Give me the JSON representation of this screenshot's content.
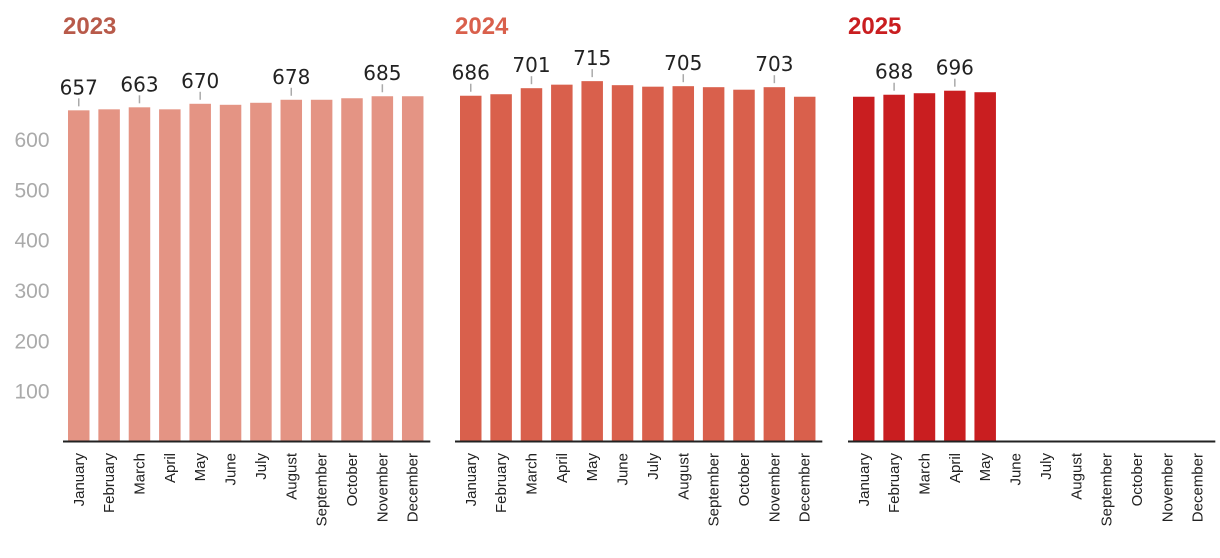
{
  "chart_data": {
    "type": "bar",
    "ylim": [
      0,
      715
    ],
    "y_ticks": [
      100,
      200,
      300,
      400,
      500,
      600
    ],
    "categories": [
      "January",
      "February",
      "March",
      "April",
      "May",
      "June",
      "July",
      "August",
      "September",
      "October",
      "November",
      "December"
    ],
    "panels": [
      {
        "title": "2023",
        "color": "#e49484",
        "title_color": "#b85a4a",
        "values": [
          657,
          659,
          663,
          659,
          670,
          668,
          672,
          678,
          678,
          681,
          685,
          685
        ],
        "labeled": [
          0,
          2,
          4,
          7,
          10
        ]
      },
      {
        "title": "2024",
        "color": "#d9604c",
        "title_color": "#d9604c",
        "values": [
          686,
          689,
          701,
          708,
          715,
          707,
          704,
          705,
          703,
          698,
          703,
          684
        ],
        "labeled": [
          0,
          2,
          4,
          7,
          10
        ]
      },
      {
        "title": "2025",
        "color": "#c91e20",
        "title_color": "#c91e20",
        "values": [
          684,
          688,
          691,
          696,
          693,
          null,
          null,
          null,
          null,
          null,
          null,
          null
        ],
        "labeled": [
          1,
          3
        ]
      }
    ]
  }
}
